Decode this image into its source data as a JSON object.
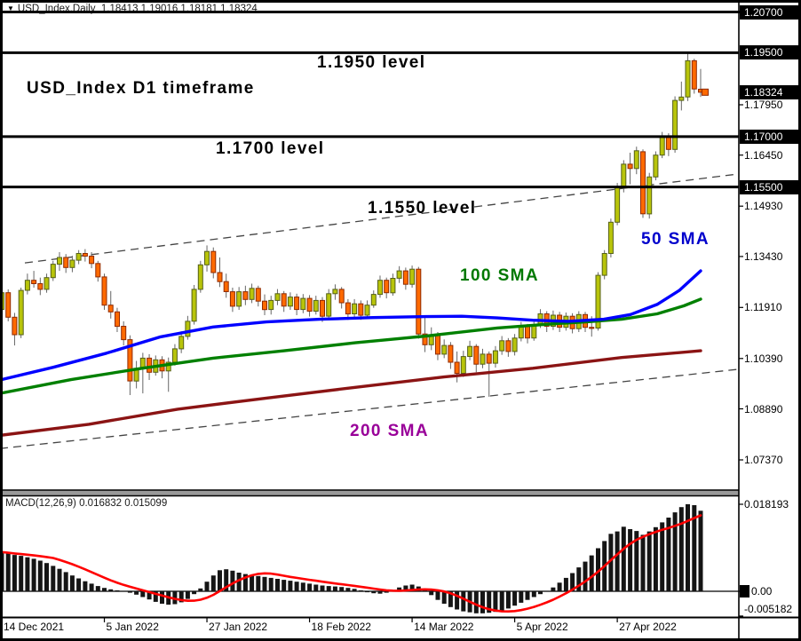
{
  "title": {
    "symbol": "USD_Index,Daily",
    "ohlc": "1.18413 1.19016 1.18181 1.18324"
  },
  "colors": {
    "bull": "#b8c40a",
    "bull_border": "#55601a",
    "bear": "#ff6a00",
    "bear_border": "#8f2a00",
    "wick": "#666666",
    "sma50": "#0000ff",
    "sma100": "#008000",
    "sma200": "#8b1414",
    "signal": "#ff0000",
    "histogram": "#151515",
    "level": "#000000",
    "channel": "#444444",
    "axis": "#000000",
    "separator": "#999999",
    "ann_sma50": "#0000cc",
    "ann_sma100": "#007800",
    "ann_sma200": "#990099"
  },
  "chart_data": [
    {
      "type": "candlestick",
      "title": "USD_Index D1 timeframe",
      "ylim": [
        1.0737,
        1.207
      ],
      "grid": false,
      "levels": [
        1.207,
        1.195,
        1.17,
        1.155
      ],
      "current_price": 1.18324,
      "x_ticks": [
        {
          "label": "14 Dec 2021",
          "bar": 0
        },
        {
          "label": "5 Jan 2022",
          "bar": 16
        },
        {
          "label": "27 Jan 2022",
          "bar": 32
        },
        {
          "label": "18 Feb 2022",
          "bar": 48
        },
        {
          "label": "14 Mar 2022",
          "bar": 64
        },
        {
          "label": "5 Apr 2022",
          "bar": 80
        },
        {
          "label": "27 Apr 2022",
          "bar": 96
        }
      ],
      "y_axis": {
        "highlighted": [
          {
            "label": "1.20700",
            "value": 1.207
          },
          {
            "label": "1.19500",
            "value": 1.195
          },
          {
            "label": "1.18324",
            "value": 1.18324
          },
          {
            "label": "1.17000",
            "value": 1.17
          },
          {
            "label": "1.15500",
            "value": 1.155
          }
        ],
        "ticks": [
          {
            "label": "1.17950",
            "value": 1.1795
          },
          {
            "label": "1.16450",
            "value": 1.1645
          },
          {
            "label": "1.14930",
            "value": 1.1493
          },
          {
            "label": "1.13430",
            "value": 1.1343
          },
          {
            "label": "1.11910",
            "value": 1.1191
          },
          {
            "label": "1.10390",
            "value": 1.1039
          },
          {
            "label": "1.08890",
            "value": 1.0889
          },
          {
            "label": "1.07370",
            "value": 1.0737
          }
        ]
      },
      "annotations": [
        {
          "text": "1.1950 level",
          "color": "#000000",
          "x": 357,
          "y": 60
        },
        {
          "text": "USD_Index D1 timeframe",
          "color": "#000000",
          "x": 30,
          "y": 89
        },
        {
          "text": "1.1700 level",
          "color": "#000000",
          "x": 243,
          "y": 157
        },
        {
          "text": "1.1550 level",
          "color": "#000000",
          "x": 414,
          "y": 224
        },
        {
          "text": "50 SMA",
          "color": "#0000cc",
          "x": 722,
          "y": 259
        },
        {
          "text": "100 SMA",
          "color": "#007800",
          "x": 518,
          "y": 300
        },
        {
          "text": "200 SMA",
          "color": "#990099",
          "x": 394,
          "y": 475
        }
      ],
      "candles": [
        [
          1.1185,
          1.1245,
          1.117,
          1.1235
        ],
        [
          1.1235,
          1.1245,
          1.115,
          1.1162
        ],
        [
          1.1162,
          1.1175,
          1.1078,
          1.111
        ],
        [
          1.111,
          1.125,
          1.11,
          1.1242
        ],
        [
          1.1242,
          1.1292,
          1.123,
          1.1272
        ],
        [
          1.1272,
          1.13,
          1.125,
          1.1262
        ],
        [
          1.1262,
          1.128,
          1.1228,
          1.1245
        ],
        [
          1.1245,
          1.1292,
          1.1235,
          1.128
        ],
        [
          1.128,
          1.133,
          1.127,
          1.132
        ],
        [
          1.132,
          1.1356,
          1.13,
          1.134
        ],
        [
          1.134,
          1.135,
          1.1294,
          1.131
        ],
        [
          1.131,
          1.1345,
          1.1296,
          1.1332
        ],
        [
          1.1332,
          1.1362,
          1.132,
          1.1352
        ],
        [
          1.1352,
          1.1365,
          1.1328,
          1.1344
        ],
        [
          1.1344,
          1.1356,
          1.1308,
          1.1322
        ],
        [
          1.1322,
          1.133,
          1.1268,
          1.1282
        ],
        [
          1.1282,
          1.1292,
          1.1184,
          1.1198
        ],
        [
          1.1198,
          1.124,
          1.1158,
          1.1178
        ],
        [
          1.1178,
          1.119,
          1.1118,
          1.1135
        ],
        [
          1.1135,
          1.115,
          1.1078,
          1.1095
        ],
        [
          1.1095,
          1.1108,
          1.093,
          1.0972
        ],
        [
          1.0972,
          1.1032,
          1.095,
          1.101
        ],
        [
          1.101,
          1.1056,
          1.0935,
          1.104
        ],
        [
          1.104,
          1.1052,
          1.0975,
          1.0998
        ],
        [
          1.0998,
          1.1048,
          1.0988,
          1.1035
        ],
        [
          1.1035,
          1.1046,
          1.098,
          1.1002
        ],
        [
          1.1002,
          1.1042,
          1.094,
          1.1028
        ],
        [
          1.1028,
          1.1082,
          1.1018,
          1.1068
        ],
        [
          1.1068,
          1.112,
          1.1055,
          1.1105
        ],
        [
          1.1105,
          1.1166,
          1.1095,
          1.115
        ],
        [
          1.115,
          1.1258,
          1.114,
          1.1245
        ],
        [
          1.1245,
          1.133,
          1.1235,
          1.1318
        ],
        [
          1.1318,
          1.1376,
          1.1298,
          1.1358
        ],
        [
          1.1358,
          1.137,
          1.1278,
          1.1295
        ],
        [
          1.1295,
          1.134,
          1.1252,
          1.1268
        ],
        [
          1.1268,
          1.1292,
          1.122,
          1.1238
        ],
        [
          1.1238,
          1.125,
          1.1178,
          1.1195
        ],
        [
          1.1195,
          1.1252,
          1.1184,
          1.1238
        ],
        [
          1.1238,
          1.1256,
          1.1198,
          1.1215
        ],
        [
          1.1215,
          1.1262,
          1.1204,
          1.1248
        ],
        [
          1.1248,
          1.1256,
          1.1194,
          1.121
        ],
        [
          1.121,
          1.123,
          1.1168,
          1.1185
        ],
        [
          1.1185,
          1.1226,
          1.117,
          1.1212
        ],
        [
          1.1212,
          1.1246,
          1.1198,
          1.1232
        ],
        [
          1.1232,
          1.124,
          1.1178,
          1.1195
        ],
        [
          1.1195,
          1.1236,
          1.1184,
          1.1222
        ],
        [
          1.1222,
          1.1232,
          1.1168,
          1.1185
        ],
        [
          1.1185,
          1.1231,
          1.1174,
          1.1218
        ],
        [
          1.1218,
          1.1228,
          1.1164,
          1.118
        ],
        [
          1.118,
          1.1226,
          1.117,
          1.1212
        ],
        [
          1.1212,
          1.1222,
          1.1148,
          1.1165
        ],
        [
          1.1165,
          1.1246,
          1.1154,
          1.1232
        ],
        [
          1.1232,
          1.126,
          1.1214,
          1.1245
        ],
        [
          1.1245,
          1.1252,
          1.1188,
          1.1205
        ],
        [
          1.1205,
          1.1216,
          1.1154,
          1.1172
        ],
        [
          1.1172,
          1.1216,
          1.116,
          1.1202
        ],
        [
          1.1202,
          1.1212,
          1.1154,
          1.1168
        ],
        [
          1.1168,
          1.1212,
          1.1158,
          1.1198
        ],
        [
          1.1198,
          1.1242,
          1.119,
          1.123
        ],
        [
          1.123,
          1.1286,
          1.122,
          1.1272
        ],
        [
          1.1272,
          1.128,
          1.1218,
          1.1235
        ],
        [
          1.1235,
          1.1292,
          1.1226,
          1.1278
        ],
        [
          1.1278,
          1.1314,
          1.1264,
          1.13
        ],
        [
          1.13,
          1.131,
          1.1244,
          1.126
        ],
        [
          1.126,
          1.1316,
          1.125,
          1.1305
        ],
        [
          1.1305,
          1.1312,
          1.1098,
          1.1112
        ],
        [
          1.1112,
          1.116,
          1.1058,
          1.108
        ],
        [
          1.108,
          1.1132,
          1.1064,
          1.1108
        ],
        [
          1.1108,
          1.1118,
          1.1034,
          1.1052
        ],
        [
          1.1052,
          1.1096,
          1.104,
          1.1078
        ],
        [
          1.1078,
          1.1088,
          1.1008,
          1.1028
        ],
        [
          1.1028,
          1.106,
          1.0968,
          1.0995
        ],
        [
          1.0995,
          1.1062,
          1.0984,
          1.1045
        ],
        [
          1.1045,
          1.1092,
          1.1034,
          1.1075
        ],
        [
          1.1075,
          1.1082,
          1.0998,
          1.1022
        ],
        [
          1.1022,
          1.1068,
          1.101,
          1.1052
        ],
        [
          1.1052,
          1.106,
          1.0925,
          1.1025
        ],
        [
          1.1025,
          1.1076,
          1.1012,
          1.1062
        ],
        [
          1.1062,
          1.1106,
          1.105,
          1.1092
        ],
        [
          1.1092,
          1.11,
          1.1044,
          1.106
        ],
        [
          1.106,
          1.1112,
          1.1048,
          1.11
        ],
        [
          1.11,
          1.1148,
          1.109,
          1.1135
        ],
        [
          1.1135,
          1.1142,
          1.1084,
          1.11
        ],
        [
          1.11,
          1.1152,
          1.1092,
          1.114
        ],
        [
          1.114,
          1.1186,
          1.113,
          1.1172
        ],
        [
          1.1172,
          1.118,
          1.1118,
          1.1135
        ],
        [
          1.1135,
          1.1182,
          1.1124,
          1.1168
        ],
        [
          1.1168,
          1.1178,
          1.1118,
          1.1132
        ],
        [
          1.1132,
          1.1176,
          1.1122,
          1.1165
        ],
        [
          1.1165,
          1.1174,
          1.1114,
          1.1128
        ],
        [
          1.1128,
          1.118,
          1.1118,
          1.117
        ],
        [
          1.117,
          1.1178,
          1.1118,
          1.1132
        ],
        [
          1.1132,
          1.1165,
          1.1104,
          1.113
        ],
        [
          1.113,
          1.1296,
          1.1122,
          1.1287
        ],
        [
          1.1287,
          1.1362,
          1.1275,
          1.1352
        ],
        [
          1.1352,
          1.1456,
          1.134,
          1.1445
        ],
        [
          1.1445,
          1.1562,
          1.1436,
          1.155
        ],
        [
          1.155,
          1.163,
          1.1534,
          1.1618
        ],
        [
          1.1618,
          1.1652,
          1.1558,
          1.1605
        ],
        [
          1.1605,
          1.167,
          1.1588,
          1.1658
        ],
        [
          1.1655,
          1.1662,
          1.1458,
          1.147
        ],
        [
          1.147,
          1.1592,
          1.1456,
          1.158
        ],
        [
          1.158,
          1.1656,
          1.157,
          1.1645
        ],
        [
          1.1645,
          1.1714,
          1.1636,
          1.17
        ],
        [
          1.17,
          1.171,
          1.1642,
          1.1662
        ],
        [
          1.1662,
          1.182,
          1.1652,
          1.1808
        ],
        [
          1.1808,
          1.1864,
          1.1778,
          1.1818
        ],
        [
          1.1818,
          1.1947,
          1.1806,
          1.1926
        ],
        [
          1.1926,
          1.1932,
          1.1828,
          1.1842
        ],
        [
          1.18413,
          1.19016,
          1.18181,
          1.18324
        ]
      ],
      "sma50": [
        [
          0,
          1.0975
        ],
        [
          60,
          1.1013
        ],
        [
          120,
          1.1055
        ],
        [
          180,
          1.1103
        ],
        [
          240,
          1.1133
        ],
        [
          300,
          1.1148
        ],
        [
          360,
          1.1156
        ],
        [
          420,
          1.1161
        ],
        [
          480,
          1.1164
        ],
        [
          520,
          1.1165
        ],
        [
          560,
          1.116
        ],
        [
          600,
          1.1153
        ],
        [
          640,
          1.115
        ],
        [
          680,
          1.1156
        ],
        [
          710,
          1.117
        ],
        [
          740,
          1.12
        ],
        [
          765,
          1.1242
        ],
        [
          789,
          1.13
        ]
      ],
      "sma100": [
        [
          0,
          1.0935
        ],
        [
          80,
          1.0976
        ],
        [
          160,
          1.101
        ],
        [
          240,
          1.104
        ],
        [
          320,
          1.1062
        ],
        [
          400,
          1.1086
        ],
        [
          480,
          1.1106
        ],
        [
          560,
          1.113
        ],
        [
          620,
          1.1142
        ],
        [
          660,
          1.1148
        ],
        [
          700,
          1.1156
        ],
        [
          740,
          1.1172
        ],
        [
          770,
          1.1196
        ],
        [
          789,
          1.1216
        ]
      ],
      "sma200": [
        [
          0,
          1.081
        ],
        [
          100,
          1.0843
        ],
        [
          200,
          1.0888
        ],
        [
          300,
          1.0921
        ],
        [
          400,
          1.0953
        ],
        [
          500,
          1.0984
        ],
        [
          600,
          1.101
        ],
        [
          700,
          1.1042
        ],
        [
          789,
          1.1062
        ]
      ],
      "channel": {
        "upper": [
          [
            28,
            1.1324
          ],
          [
            832,
            1.1589
          ]
        ],
        "lower": [
          [
            0,
            1.0771
          ],
          [
            832,
            1.1007
          ]
        ]
      }
    },
    {
      "type": "bar",
      "label": "MACD(12,26,9) 0.016832 0.015099",
      "macd_value": 0.016832,
      "signal_value": 0.015099,
      "signal_period": 9,
      "y_ticks": [
        {
          "label": "0.018193",
          "value": 0.018193
        },
        {
          "label": "0.00",
          "value": 0
        },
        {
          "label": "-0.005182",
          "value": -0.005182
        }
      ],
      "histogram": [
        0.0082,
        0.0079,
        0.0076,
        0.0074,
        0.0071,
        0.0068,
        0.0064,
        0.0059,
        0.0053,
        0.0047,
        0.004,
        0.0033,
        0.0027,
        0.0021,
        0.0016,
        0.0011,
        0.0007,
        0.0004,
        0.0002,
        0.0,
        -0.0003,
        -0.0007,
        -0.0012,
        -0.0017,
        -0.0022,
        -0.0026,
        -0.0028,
        -0.0027,
        -0.0023,
        -0.0016,
        -0.0006,
        0.0006,
        0.002,
        0.0033,
        0.0044,
        0.0046,
        0.0043,
        0.0039,
        0.0036,
        0.0034,
        0.0032,
        0.003,
        0.0028,
        0.0026,
        0.0024,
        0.0022,
        0.002,
        0.0018,
        0.0016,
        0.0014,
        0.0012,
        0.0011,
        0.001,
        0.0009,
        0.0007,
        0.0005,
        0.0002,
        -0.0002,
        -0.0004,
        -0.0005,
        -0.0003,
        0.0002,
        0.0008,
        0.0012,
        0.0014,
        0.001,
        0.0002,
        -0.0008,
        -0.0018,
        -0.0026,
        -0.0033,
        -0.0038,
        -0.0042,
        -0.0044,
        -0.0046,
        -0.0046,
        -0.0045,
        -0.0043,
        -0.004,
        -0.0036,
        -0.003,
        -0.0024,
        -0.0018,
        -0.0012,
        -0.0006,
        0.0,
        0.0008,
        0.0018,
        0.0028,
        0.0038,
        0.005,
        0.0062,
        0.0075,
        0.009,
        0.0105,
        0.012,
        0.0125,
        0.0135,
        0.013,
        0.0126,
        0.0118,
        0.0125,
        0.0134,
        0.0144,
        0.0154,
        0.0165,
        0.0176,
        0.0182,
        0.018,
        0.016832
      ]
    }
  ]
}
